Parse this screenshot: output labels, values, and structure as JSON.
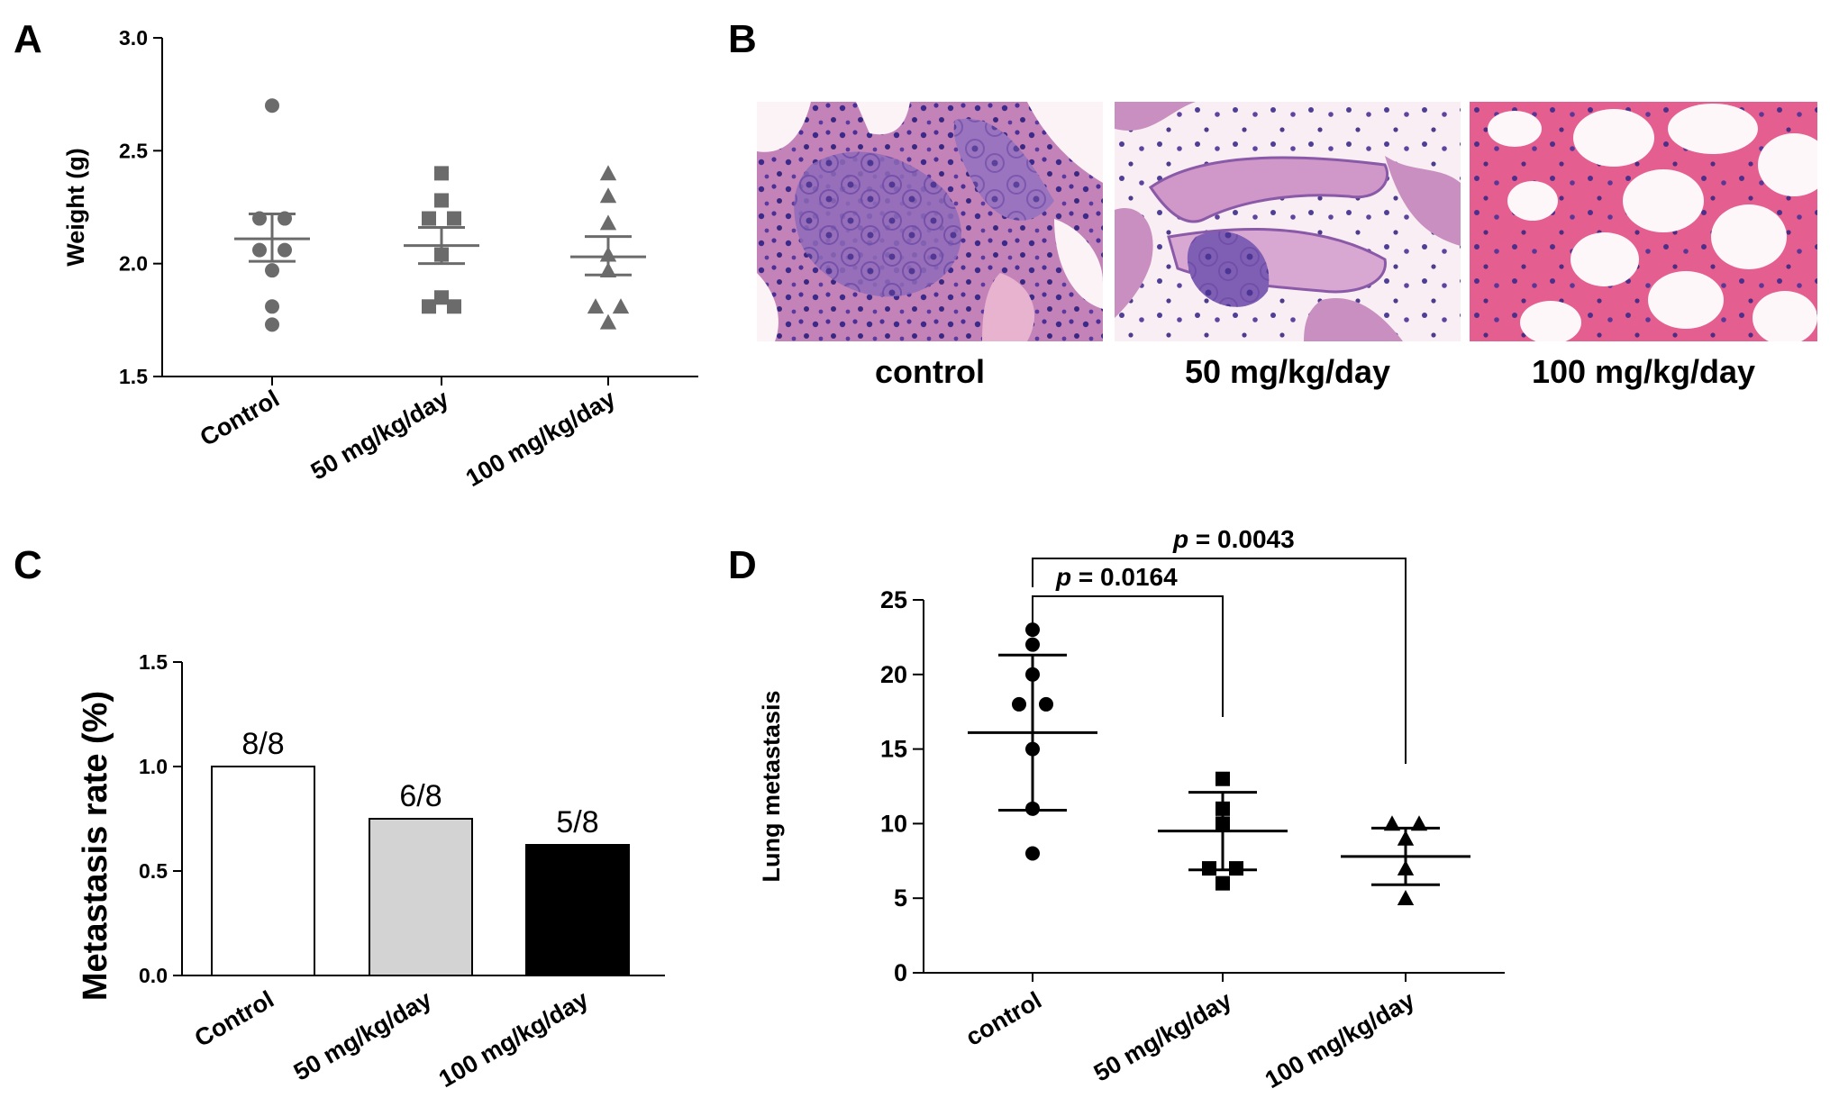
{
  "panels": {
    "A": "A",
    "B": "B",
    "C": "C",
    "D": "D"
  },
  "histology": {
    "labels": [
      "control",
      "50 mg/kg/day",
      "100 mg/kg/day"
    ]
  },
  "chart_data": [
    {
      "id": "A",
      "type": "scatter",
      "ylabel": "Weight (g)",
      "ylim": [
        1.5,
        3.0
      ],
      "yticks": [
        "1.5",
        "2.0",
        "2.5",
        "3.0"
      ],
      "categories": [
        "Control",
        "50 mg/kg/day",
        "100 mg/kg/day"
      ],
      "marker_shapes": [
        "circle",
        "square",
        "triangle"
      ],
      "color": "#6b6b6b",
      "groups": [
        {
          "points": [
            2.7,
            2.2,
            2.2,
            2.06,
            2.06,
            1.97,
            1.81,
            1.73
          ],
          "mean": 2.11,
          "upper": 2.22,
          "lower": 2.01
        },
        {
          "points": [
            2.4,
            2.28,
            2.2,
            2.2,
            2.04,
            1.85,
            1.81,
            1.81
          ],
          "mean": 2.08,
          "upper": 2.16,
          "lower": 2.0
        },
        {
          "points": [
            2.4,
            2.3,
            2.18,
            2.04,
            1.97,
            1.81,
            1.81,
            1.74
          ],
          "mean": 2.03,
          "upper": 2.12,
          "lower": 1.95
        }
      ]
    },
    {
      "id": "C",
      "type": "bar",
      "ylabel": "Metastasis rate (%)",
      "ylim": [
        0.0,
        1.5
      ],
      "yticks": [
        "0.0",
        "0.5",
        "1.0",
        "1.5"
      ],
      "categories": [
        "Control",
        "50 mg/kg/day",
        "100 mg/kg/day"
      ],
      "values": [
        1.0,
        0.75,
        0.625
      ],
      "bar_labels": [
        "8/8",
        "6/8",
        "5/8"
      ],
      "fills": [
        "#ffffff",
        "#d3d3d3",
        "#000000"
      ]
    },
    {
      "id": "D",
      "type": "scatter",
      "ylabel": "Lung metastasis",
      "ylim": [
        0,
        25
      ],
      "yticks": [
        "0",
        "5",
        "10",
        "15",
        "20",
        "25"
      ],
      "categories": [
        "control",
        "50 mg/kg/day",
        "100 mg/kg/day"
      ],
      "marker_shapes": [
        "circle",
        "square",
        "triangle"
      ],
      "color": "#000000",
      "groups": [
        {
          "points": [
            23,
            22,
            20,
            18,
            18,
            15,
            11,
            8
          ],
          "mean": 16.1,
          "upper": 21.3,
          "lower": 10.9
        },
        {
          "points": [
            13,
            11,
            10,
            7,
            7,
            6
          ],
          "mean": 9.5,
          "upper": 12.1,
          "lower": 6.9
        },
        {
          "points": [
            10,
            10,
            9,
            7,
            5
          ],
          "mean": 7.8,
          "upper": 9.7,
          "lower": 5.9
        }
      ],
      "comparisons": [
        {
          "from": 0,
          "to": 1,
          "label_italic": "p",
          "label_rest": " = 0.0164"
        },
        {
          "from": 0,
          "to": 2,
          "label_italic": "p",
          "label_rest": " = 0.0043"
        }
      ]
    }
  ]
}
